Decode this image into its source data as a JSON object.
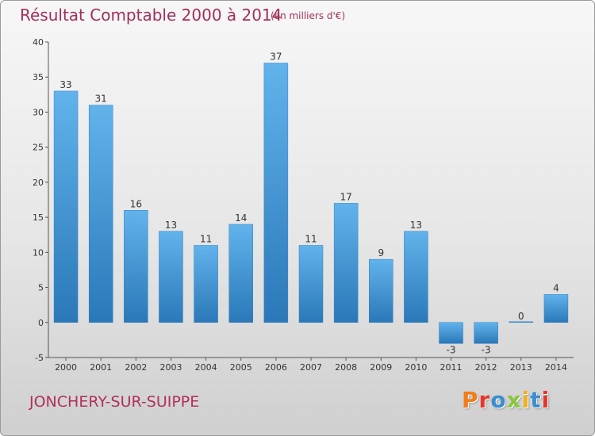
{
  "header": {
    "title": "Résultat Comptable 2000 à 2014",
    "unit": "(en milliers d'€)"
  },
  "footer": {
    "commune": "JONCHERY-SUR-SUIPPE",
    "brand": "Proxiti"
  },
  "colors": {
    "bar_light": "#62b3ec",
    "bar_dark": "#2a78b8",
    "title": "#a0305a",
    "brand_letters": [
      "#f07d1a",
      "#e8352a",
      "#3a8fd0",
      "#8cc63f",
      "#f2b01e",
      "#3a8fd0",
      "#e8352a"
    ]
  },
  "chart_data": {
    "type": "bar",
    "title": "Résultat Comptable 2000 à 2014",
    "xlabel": "",
    "ylabel": "",
    "categories": [
      "2000",
      "2001",
      "2002",
      "2003",
      "2004",
      "2005",
      "2006",
      "2007",
      "2008",
      "2009",
      "2010",
      "2011",
      "2012",
      "2013",
      "2014"
    ],
    "values": [
      33,
      31,
      16,
      13,
      11,
      14,
      37,
      11,
      17,
      9,
      13,
      -3,
      -3,
      0,
      4
    ],
    "data_labels": [
      "33",
      "31",
      "16",
      "13",
      "11",
      "14",
      "37",
      "11",
      "17",
      "9",
      "13",
      "-3",
      "-3",
      "0",
      "4"
    ],
    "yticks": [
      -5,
      0,
      5,
      10,
      15,
      20,
      25,
      30,
      35,
      40
    ],
    "ylim": [
      -5,
      40
    ],
    "grid": false,
    "legend": "none"
  }
}
